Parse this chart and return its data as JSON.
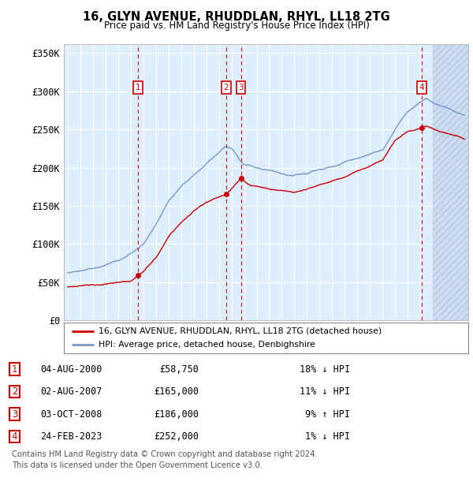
{
  "title": "16, GLYN AVENUE, RHUDDLAN, RHYL, LL18 2TG",
  "subtitle": "Price paid vs. HM Land Registry's House Price Index (HPI)",
  "ylabel_ticks": [
    "£0",
    "£50K",
    "£100K",
    "£150K",
    "£200K",
    "£250K",
    "£300K",
    "£350K"
  ],
  "ytick_values": [
    0,
    50000,
    100000,
    150000,
    200000,
    250000,
    300000,
    350000
  ],
  "ylim": [
    0,
    362000
  ],
  "xlim_start": 1994.7,
  "xlim_end": 2026.8,
  "bg_color": "#ddeeff",
  "grid_color": "#ffffff",
  "red_line_color": "#cc0000",
  "blue_line_color": "#7799cc",
  "transaction_color": "#cc0000",
  "dashed_color": "#cc0000",
  "transactions": [
    {
      "num": 1,
      "year": 2000.58,
      "price": 58750,
      "label": "04-AUG-2000",
      "price_str": "£58,750",
      "pct": "18% ↓ HPI"
    },
    {
      "num": 2,
      "year": 2007.58,
      "price": 165000,
      "label": "02-AUG-2007",
      "price_str": "£165,000",
      "pct": "11% ↓ HPI"
    },
    {
      "num": 3,
      "year": 2008.75,
      "price": 186000,
      "label": "03-OCT-2008",
      "price_str": "£186,000",
      "pct": "9% ↑ HPI"
    },
    {
      "num": 4,
      "year": 2023.12,
      "price": 252000,
      "label": "24-FEB-2023",
      "price_str": "£252,000",
      "pct": "1% ↓ HPI"
    }
  ],
  "legend_line1": "16, GLYN AVENUE, RHUDDLAN, RHYL, LL18 2TG (detached house)",
  "legend_line2": "HPI: Average price, detached house, Denbighshire",
  "footer1": "Contains HM Land Registry data © Crown copyright and database right 2024.",
  "footer2": "This data is licensed under the Open Government Licence v3.0."
}
